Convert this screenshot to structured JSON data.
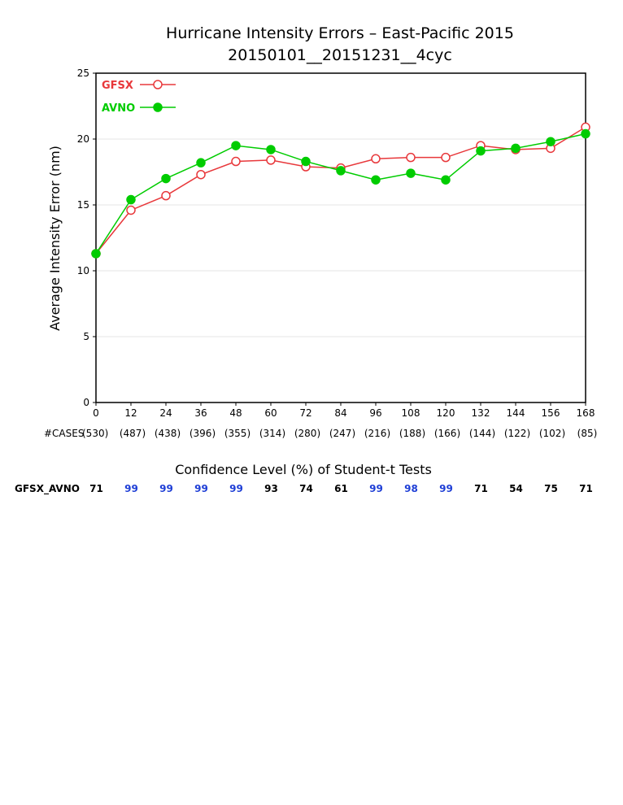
{
  "chart_data": {
    "type": "line",
    "title": "Hurricane Intensity Errors – East-Pacific 2015",
    "subtitle": "20150101__20151231__4cyc",
    "xlabel": "",
    "ylabel": "Average Intensity Error (nm)",
    "x": [
      0,
      12,
      24,
      36,
      48,
      60,
      72,
      84,
      96,
      108,
      120,
      132,
      144,
      156,
      168
    ],
    "xlim": [
      0,
      168
    ],
    "ylim": [
      0,
      25
    ],
    "yticks": [
      0,
      5,
      10,
      15,
      20,
      25
    ],
    "grid": true,
    "legend_position": "top-left",
    "series": [
      {
        "name": "GFSX",
        "color": "#e8383b",
        "marker": "open-circle",
        "values": [
          11.3,
          14.6,
          15.7,
          17.3,
          18.3,
          18.4,
          17.9,
          17.8,
          18.5,
          18.6,
          18.6,
          19.5,
          19.2,
          19.3,
          20.9
        ]
      },
      {
        "name": "AVNO",
        "color": "#00cc00",
        "marker": "filled-circle",
        "values": [
          11.3,
          15.4,
          17.0,
          18.2,
          19.5,
          19.2,
          18.3,
          17.6,
          16.9,
          17.4,
          16.9,
          19.1,
          19.3,
          19.8,
          20.4
        ]
      }
    ],
    "cases_prefix": "#CASES",
    "cases": [
      "(530)",
      "(487)",
      "(438)",
      "(396)",
      "(355)",
      "(314)",
      "(280)",
      "(247)",
      "(216)",
      "(188)",
      "(166)",
      "(144)",
      "(122)",
      "(102)",
      "(85)"
    ],
    "confidence": {
      "title": "Confidence Level (%) of Student-t Tests",
      "row_label": "GFSX_AVNO",
      "values": [
        71,
        99,
        99,
        99,
        99,
        93,
        74,
        61,
        99,
        98,
        99,
        71,
        54,
        75,
        71
      ],
      "highlight_color": "#1f3fd6",
      "normal_color": "#000000",
      "highlight_threshold": 95
    }
  }
}
